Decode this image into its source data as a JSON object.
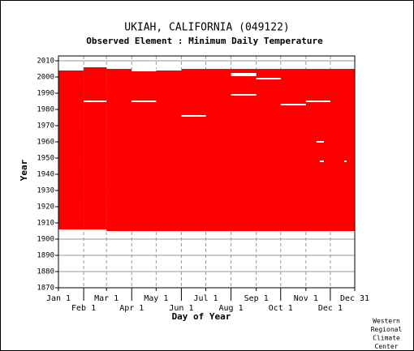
{
  "chart_data": {
    "type": "coverage",
    "title": "UKIAH, CALIFORNIA   (049122)",
    "subtitle": "Observed Element : Minimum Daily Temperature",
    "ylabel": "Year",
    "xlabel": "Day of Year",
    "credit": [
      "Western",
      "Regional",
      "Climate",
      "Center"
    ],
    "xlim": [
      1,
      365
    ],
    "ylim": [
      1870,
      2013
    ],
    "xticks": [
      {
        "value": 1,
        "label": "Jan 1"
      },
      {
        "value": 32,
        "label": "Feb 1"
      },
      {
        "value": 60,
        "label": "Mar 1"
      },
      {
        "value": 91,
        "label": "Apr 1"
      },
      {
        "value": 121,
        "label": "May 1"
      },
      {
        "value": 152,
        "label": "Jun 1"
      },
      {
        "value": 182,
        "label": "Jul 1"
      },
      {
        "value": 213,
        "label": "Aug 1"
      },
      {
        "value": 244,
        "label": "Sep 1"
      },
      {
        "value": 274,
        "label": "Oct 1"
      },
      {
        "value": 305,
        "label": "Nov 1"
      },
      {
        "value": 335,
        "label": "Dec 1"
      },
      {
        "value": 365,
        "label": "Dec 31"
      }
    ],
    "yticks": [
      1870,
      1880,
      1890,
      1900,
      1910,
      1920,
      1930,
      1940,
      1950,
      1960,
      1970,
      1980,
      1990,
      2000,
      2010
    ],
    "color": "#ff0000",
    "gap_color": "#ffffff",
    "grid": true,
    "records": [
      {
        "x": [
          1,
          32
        ],
        "y": [
          1906,
          2004
        ]
      },
      {
        "x": [
          32,
          60
        ],
        "y": [
          1906,
          2006
        ]
      },
      {
        "x": [
          60,
          365
        ],
        "y": [
          1905,
          2005
        ]
      }
    ],
    "gaps": [
      {
        "x": [
          32,
          60
        ],
        "y": [
          1984.5,
          1985.5
        ]
      },
      {
        "x": [
          91,
          121
        ],
        "y": [
          1984.5,
          1985.5
        ]
      },
      {
        "x": [
          152,
          182
        ],
        "y": [
          1975.5,
          1976.5
        ]
      },
      {
        "x": [
          213,
          244
        ],
        "y": [
          2000.5,
          2002.5
        ]
      },
      {
        "x": [
          213,
          244
        ],
        "y": [
          1988.5,
          1989.5
        ]
      },
      {
        "x": [
          244,
          274
        ],
        "y": [
          1998.5,
          1999.5
        ]
      },
      {
        "x": [
          274,
          305
        ],
        "y": [
          1982.5,
          1983.5
        ]
      },
      {
        "x": [
          305,
          335
        ],
        "y": [
          1984.5,
          1985.5
        ]
      },
      {
        "x": [
          318,
          327
        ],
        "y": [
          1959.5,
          1960.5
        ]
      },
      {
        "x": [
          322,
          327
        ],
        "y": [
          1947.5,
          1948.5
        ]
      },
      {
        "x": [
          352,
          355
        ],
        "y": [
          1947.5,
          1948.5
        ]
      },
      {
        "x": [
          91,
          121
        ],
        "y": [
          2003.5,
          2005
        ]
      },
      {
        "x": [
          121,
          152
        ],
        "y": [
          2004,
          2005
        ]
      }
    ]
  }
}
